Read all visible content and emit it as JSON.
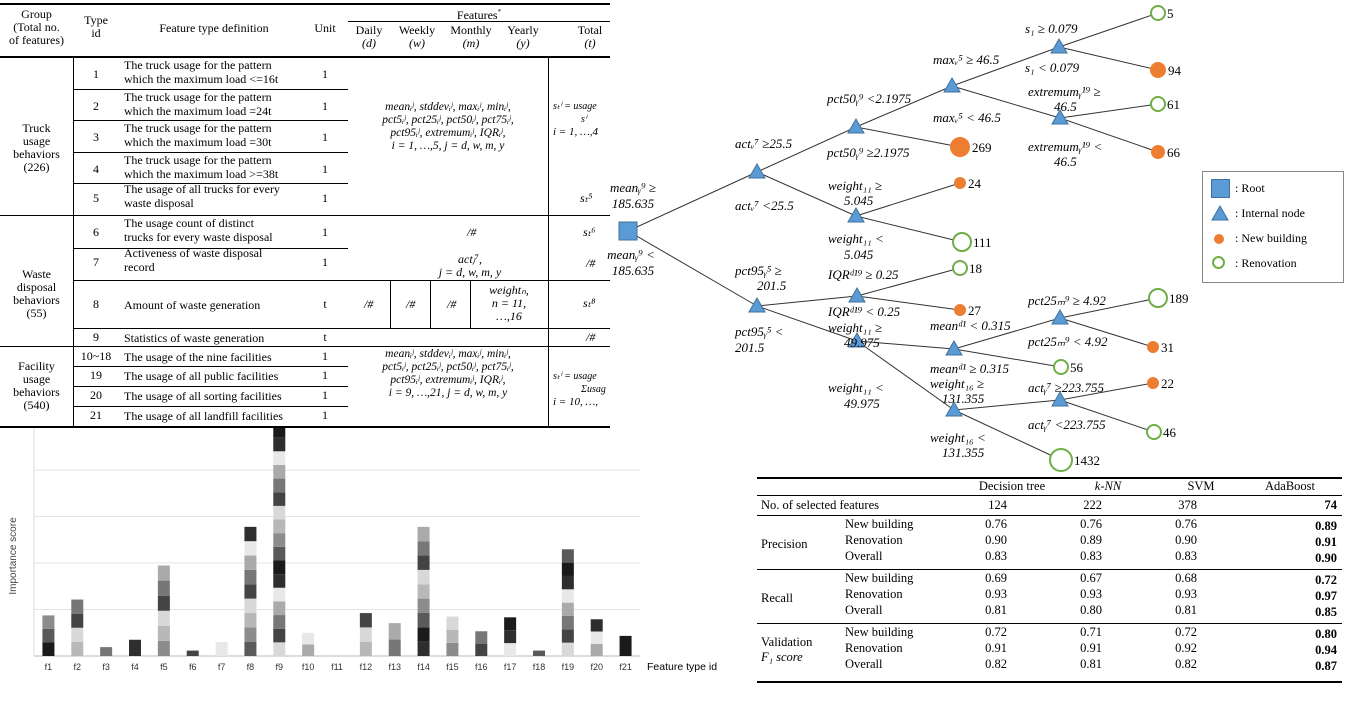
{
  "feature_table": {
    "headers": {
      "group": [
        "Group",
        "(Total no.",
        "of features)"
      ],
      "type_id": [
        "Type",
        "id"
      ],
      "definition": "Feature type definition",
      "unit": "Unit",
      "features": "Features",
      "features_mark": "*",
      "daily": "Daily",
      "daily_sym": "(d)",
      "weekly": "Weekly",
      "weekly_sym": "(w)",
      "monthly": "Monthly",
      "monthly_sym": "(m)",
      "yearly": "Yearly",
      "yearly_sym": "(y)",
      "total": "Total",
      "total_sym": "(t)"
    },
    "groups": {
      "truck": [
        "Truck",
        "usage",
        "behaviors",
        "(226)"
      ],
      "waste": [
        "Waste",
        "disposal",
        "behaviors",
        "(55)"
      ],
      "facility": [
        "Facility",
        "usage",
        "behaviors",
        "(540)"
      ]
    },
    "rows": [
      {
        "id": "1",
        "def": [
          "The truck usage for the pattern",
          "which the maximum load <=16t"
        ],
        "unit": "1"
      },
      {
        "id": "2",
        "def": [
          "The truck usage for the pattern",
          "which the maximum load =24t"
        ],
        "unit": "1"
      },
      {
        "id": "3",
        "def": [
          "The truck usage for the pattern",
          "which the maximum load =30t"
        ],
        "unit": "1"
      },
      {
        "id": "4",
        "def": [
          "The truck usage for the pattern",
          "which the maximum load >=38t"
        ],
        "unit": "1"
      },
      {
        "id": "5",
        "def": [
          "The usage of all trucks for every",
          "waste disposal"
        ],
        "unit": "1"
      },
      {
        "id": "6",
        "def": [
          "The usage count of distinct",
          "trucks for every waste disposal"
        ],
        "unit": "1"
      },
      {
        "id": "7",
        "def": [
          "Activeness of waste disposal",
          "record"
        ],
        "unit": "1"
      },
      {
        "id": "8",
        "def": [
          "Amount of waste generation",
          ""
        ],
        "unit": "t"
      },
      {
        "id": "9",
        "def": [
          "Statistics of waste generation",
          ""
        ],
        "unit": "t"
      },
      {
        "id": "10~18",
        "def": [
          "The usage of the nine facilities",
          ""
        ],
        "unit": "1"
      },
      {
        "id": "19",
        "def": [
          "The usage of all public facilities",
          ""
        ],
        "unit": "1"
      },
      {
        "id": "20",
        "def": [
          "The usage of all sorting facilities",
          ""
        ],
        "unit": "1"
      },
      {
        "id": "21",
        "def": [
          "The usage of all landfill facilities",
          ""
        ],
        "unit": "1"
      }
    ],
    "formulas": {
      "truck_stats": [
        "meanᵢʲ, stddevᵢʲ, maxᵢʲ, minᵢʲ,",
        "pct5ᵢʲ, pct25ᵢʲ, pct50ᵢʲ, pct75ᵢʲ,",
        "pct95ᵢʲ, extremumᵢʲ, IQRᵢʲ,",
        "i = 1, …,5, j = d, w, m, y"
      ],
      "truck_total": [
        "sₜⁱ = usage",
        "sⁱ",
        "i = 1, …,4"
      ],
      "s5": "sₜ⁵",
      "s6": "sₜ⁶",
      "slash": "/#",
      "act": [
        "actⱼ⁷,",
        "j = d, w, m, y"
      ],
      "weight": [
        "weightₙ,",
        "n = 11,",
        "…,16"
      ],
      "s8": "sₜ⁸",
      "fac_stats": [
        "meanᵢʲ, stddevᵢʲ, maxᵢʲ, minᵢʲ,",
        "pct5ᵢʲ, pct25ᵢʲ, pct50ᵢʲ, pct75ᵢʲ,",
        "pct95ᵢʲ, extremumᵢʲ, IQRᵢʲ,",
        "i = 9, …,21, j = d, w, m, y"
      ],
      "fac_total": [
        "sₜⁱ = usage",
        "Σusag",
        "i = 10, …,"
      ]
    }
  },
  "tree": {
    "root": [
      "meanᵧ⁹ ≥",
      "185.635",
      "meanᵧ⁹ <",
      "185.635"
    ],
    "labels": {
      "act_ge": "actᵥ⁷ ≥25.5",
      "act_lt": "actᵥ⁷ <25.5",
      "pct50_lt": "pct50ᵧ⁹ <2.1975",
      "pct50_ge": "pct50ᵧ⁹ ≥2.1975",
      "max_ge": "maxᵥ⁵ ≥ 46.5",
      "max_lt": "maxᵥ⁵ < 46.5",
      "s1_ge": "s₁ ≥ 0.079",
      "s1_lt": "s₁ < 0.079",
      "ext_ge": [
        "extremumᵧ¹⁹ ≥",
        "46.5"
      ],
      "ext_lt": [
        "extremumᵧ¹⁹ <",
        "46.5"
      ],
      "w11a_ge": [
        "weight₁₁ ≥",
        "5.045"
      ],
      "w11a_lt": [
        "weight₁₁ <",
        "5.045"
      ],
      "pct95_ge": [
        "pct95ᵧ⁵ ≥",
        "201.5"
      ],
      "pct95_lt": [
        "pct95ᵧ⁵ <",
        "201.5"
      ],
      "iqr_ge": "IQRᵈ¹⁹ ≥ 0.25",
      "iqr_lt": "IQRᵈ¹⁹ < 0.25",
      "w11b_ge": [
        "weight₁₁ ≥",
        "49.975"
      ],
      "w11b_lt": [
        "weight₁₁ <",
        "49.975"
      ],
      "mean_lt": "meanᵈ¹ < 0.315",
      "mean_ge": "meanᵈ¹ ≥ 0.315",
      "pct25_ge": "pct25ₘ⁹ ≥ 4.92",
      "pct25_lt": "pct25ₘ⁹ < 4.92",
      "w16_ge": [
        "weight₁₆ ≥",
        "131.355"
      ],
      "w16_lt": [
        "weight₁₆ <",
        "131.355"
      ],
      "act_y_ge": "actᵧ⁷ ≥223.755",
      "act_y_lt": "actᵧ⁷ <223.755"
    },
    "leaves": [
      "5",
      "94",
      "61",
      "66",
      "269",
      "24",
      "111",
      "18",
      "27",
      "189",
      "31",
      "56",
      "22",
      "46",
      "1432"
    ],
    "legend": [
      ": Root",
      ": Internal node",
      ": New building",
      ": Renovation"
    ],
    "colors": {
      "root": "#5b9bd5",
      "new_building": "#ed7d31",
      "renovation": "#70ad47"
    }
  },
  "results": {
    "columns": [
      "Decision tree",
      "k-NN",
      "SVM",
      "AdaBoost"
    ],
    "selected": {
      "label": "No. of selected features",
      "values": [
        "124",
        "222",
        "378",
        "74"
      ]
    },
    "sub": [
      "New building",
      "Renovation",
      "Overall"
    ],
    "precision": {
      "label": "Precision",
      "rows": [
        [
          "0.76",
          "0.76",
          "0.76",
          "0.89"
        ],
        [
          "0.90",
          "0.89",
          "0.90",
          "0.91"
        ],
        [
          "0.83",
          "0.83",
          "0.83",
          "0.90"
        ]
      ]
    },
    "recall": {
      "label": "Recall",
      "rows": [
        [
          "0.69",
          "0.67",
          "0.68",
          "0.72"
        ],
        [
          "0.93",
          "0.93",
          "0.93",
          "0.97"
        ],
        [
          "0.81",
          "0.80",
          "0.81",
          "0.85"
        ]
      ]
    },
    "f1": {
      "label": [
        "Validation",
        "F₁ score"
      ],
      "rows": [
        [
          "0.72",
          "0.71",
          "0.72",
          "0.80"
        ],
        [
          "0.91",
          "0.91",
          "0.92",
          "0.94"
        ],
        [
          "0.82",
          "0.81",
          "0.82",
          "0.87"
        ]
      ]
    }
  },
  "chart_data": {
    "type": "bar",
    "ylabel": "Importance score",
    "xlabel": "Feature type id",
    "categories": [
      "f1",
      "f2",
      "f3",
      "f4",
      "f5",
      "f6",
      "f7",
      "f8",
      "f9",
      "f10",
      "f11",
      "f12",
      "f13",
      "f14",
      "f15",
      "f16",
      "f17",
      "f18",
      "f19",
      "f20",
      "f21"
    ],
    "values": [
      0.105,
      0.146,
      0.023,
      0.042,
      0.234,
      0.014,
      0.036,
      0.334,
      0.6,
      0.06,
      0.0,
      0.111,
      0.085,
      0.334,
      0.102,
      0.064,
      0.1,
      0.014,
      0.276,
      0.095,
      0.052
    ],
    "stacked": true,
    "grid": true
  }
}
